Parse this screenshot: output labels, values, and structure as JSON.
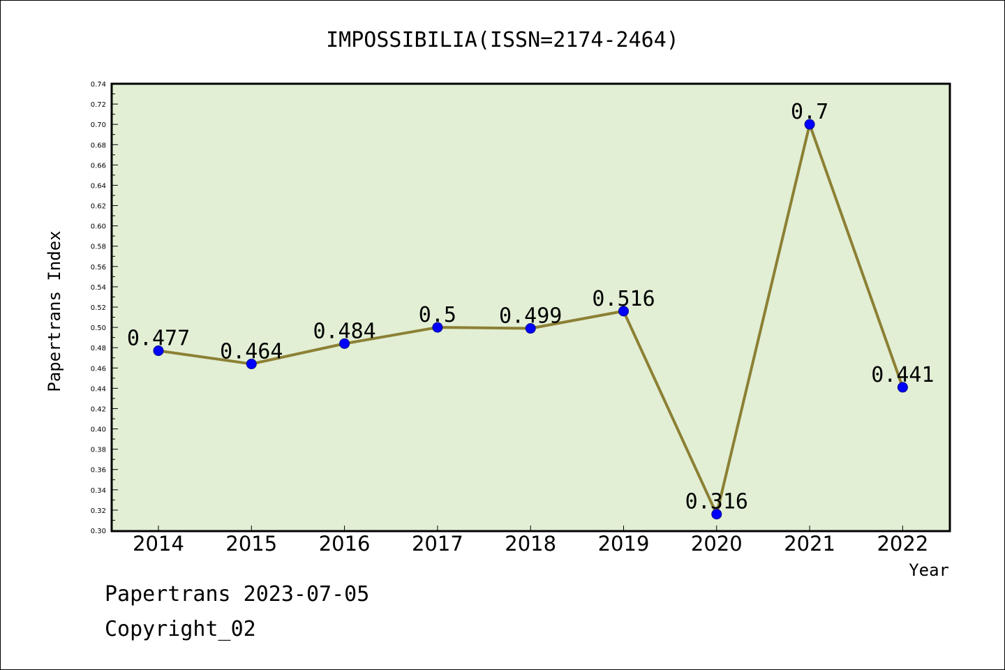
{
  "chart_data": {
    "type": "line",
    "title": "IMPOSSIBILIA(ISSN=2174-2464)",
    "xlabel": "Year",
    "ylabel": "Papertrans Index",
    "x": [
      "2014",
      "2015",
      "2016",
      "2017",
      "2018",
      "2019",
      "2020",
      "2021",
      "2022"
    ],
    "series": [
      {
        "values": [
          0.477,
          0.464,
          0.484,
          0.5,
          0.499,
          0.516,
          0.316,
          0.7,
          0.441
        ],
        "labels": [
          "0.477",
          "0.464",
          "0.484",
          "0.5",
          "0.499",
          "0.516",
          "0.316",
          "0.7",
          "0.441"
        ]
      }
    ],
    "ylim": [
      0.3,
      0.74
    ],
    "yticks": [
      "0.30",
      "0.32",
      "0.34",
      "0.36",
      "0.38",
      "0.40",
      "0.42",
      "0.44",
      "0.46",
      "0.48",
      "0.50",
      "0.52",
      "0.54",
      "0.56",
      "0.58",
      "0.60",
      "0.62",
      "0.64",
      "0.66",
      "0.68",
      "0.70",
      "0.72",
      "0.74"
    ],
    "grid": false,
    "colors": {
      "plot_background": "#e2efd5",
      "line": "#8c8034",
      "marker": "#0000ff"
    }
  },
  "footer": {
    "date_text": "Papertrans 2023-07-05",
    "copyright_text": "Copyright_02"
  }
}
